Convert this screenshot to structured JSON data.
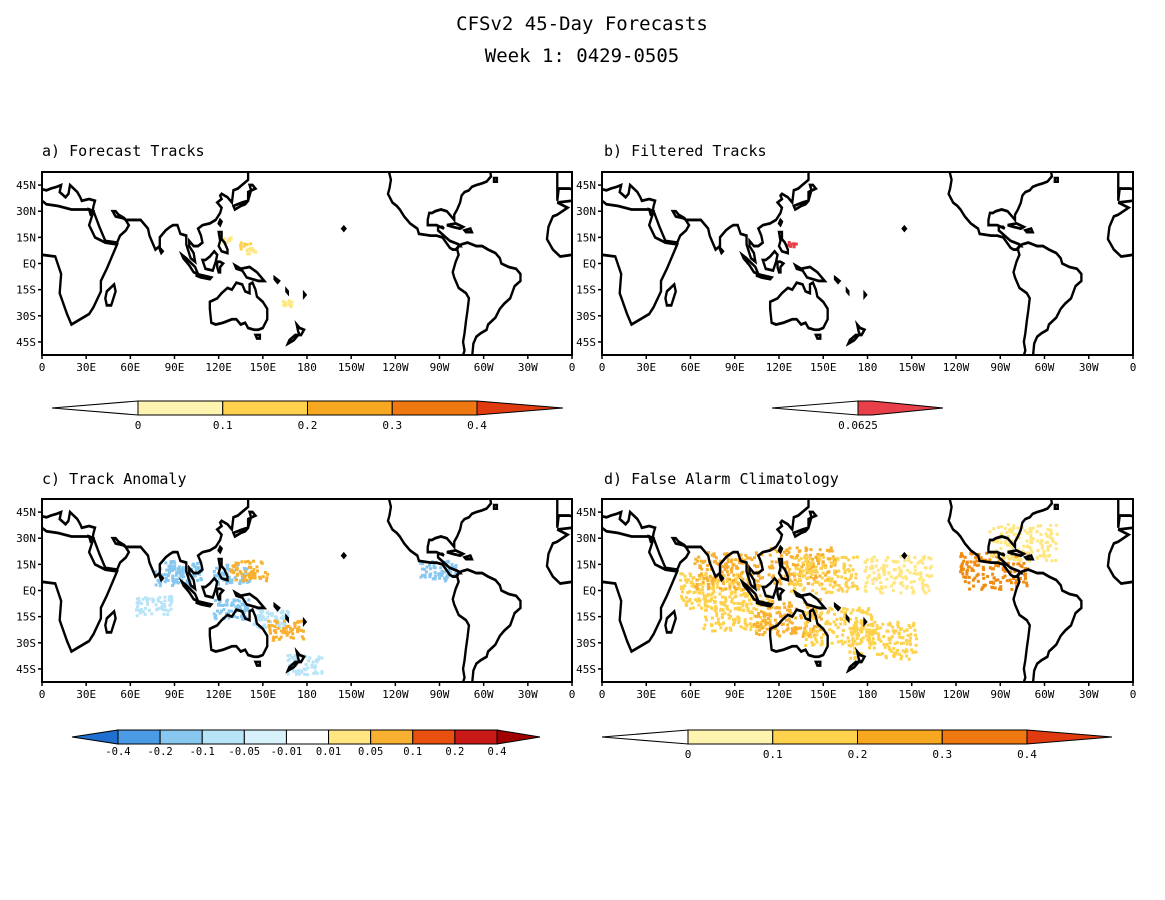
{
  "figure": {
    "title": "CFSv2 45-Day Forecasts",
    "subtitle": "Week 1: 0429-0505"
  },
  "axes": {
    "x_ticks": [
      "0",
      "30E",
      "60E",
      "90E",
      "120E",
      "150E",
      "180",
      "150W",
      "120W",
      "90W",
      "60W",
      "30W",
      "0"
    ],
    "y_ticks": [
      "45N",
      "30N",
      "15N",
      "EQ",
      "15S",
      "30S",
      "45S"
    ]
  },
  "colors": {
    "land_outline": "#000000",
    "yellow_light": "#ffe680",
    "yellow": "#ffd24d",
    "orange_light": "#f7b030",
    "orange": "#f08a10",
    "red_orange": "#e85010",
    "red": "#d01010",
    "dark_red": "#a00000",
    "blue_dark": "#1e6fd0",
    "blue": "#4a9ae6",
    "blue_light": "#88c8f0",
    "blue_pale": "#b8e4f8",
    "pink_red": "#e8404a"
  },
  "panels": [
    {
      "id": "a",
      "label": "a) Forecast Tracks",
      "colorbar": {
        "labels": [
          "0",
          "0.1",
          "0.2",
          "0.3",
          "0.4"
        ],
        "colors": [
          "#fff3b0",
          "#ffd24d",
          "#f7a820",
          "#f07810",
          "#e03a10"
        ]
      },
      "features": [
        {
          "lon": 126,
          "lat": 14,
          "value": 0.05
        },
        {
          "lon": 137,
          "lat": 11,
          "value": 0.1
        },
        {
          "lon": 142,
          "lat": 8,
          "value": 0.05
        },
        {
          "lon": 165,
          "lat": -22,
          "value": 0.05
        }
      ]
    },
    {
      "id": "b",
      "label": "b) Filtered Tracks",
      "colorbar": {
        "labels": [
          "0.0625"
        ],
        "colors": [
          "#e8404a"
        ]
      },
      "features": [
        {
          "lon": 127,
          "lat": 12,
          "value": 0.0625
        }
      ]
    },
    {
      "id": "c",
      "label": "c) Track Anomaly",
      "colorbar": {
        "labels": [
          "-0.4",
          "-0.2",
          "-0.1",
          "-0.05",
          "-0.01",
          "0.01",
          "0.05",
          "0.1",
          "0.2",
          "0.4"
        ],
        "colors": [
          "#1e6fd0",
          "#4a9ae6",
          "#88c8f0",
          "#b8e4f8",
          "#d8f2fc",
          "#ffffff",
          "#ffe680",
          "#f7b030",
          "#e85010",
          "#c81818",
          "#a00000"
        ]
      },
      "features": [
        {
          "lon": 95,
          "lat": 12,
          "value": -0.05
        },
        {
          "lon": 88,
          "lat": 8,
          "value": -0.05
        },
        {
          "lon": 75,
          "lat": -8,
          "value": -0.01
        },
        {
          "lon": 128,
          "lat": 10,
          "value": -0.05
        },
        {
          "lon": 140,
          "lat": 12,
          "value": 0.05
        },
        {
          "lon": 128,
          "lat": -10,
          "value": -0.05
        },
        {
          "lon": 155,
          "lat": -15,
          "value": -0.01
        },
        {
          "lon": 178,
          "lat": -42,
          "value": -0.01
        },
        {
          "lon": 268,
          "lat": 12,
          "value": -0.05
        },
        {
          "lon": 165,
          "lat": -22,
          "value": 0.05
        }
      ]
    },
    {
      "id": "d",
      "label": "d) False Alarm Climatology",
      "colorbar": {
        "labels": [
          "0",
          "0.1",
          "0.2",
          "0.3",
          "0.4"
        ],
        "colors": [
          "#fff3b0",
          "#ffd24d",
          "#f7a820",
          "#f07810",
          "#e03a10"
        ]
      },
      "features": [
        {
          "lon": 75,
          "lat": 0,
          "value": 0.1
        },
        {
          "lon": 85,
          "lat": 12,
          "value": 0.15
        },
        {
          "lon": 90,
          "lat": -12,
          "value": 0.1
        },
        {
          "lon": 135,
          "lat": 15,
          "value": 0.12
        },
        {
          "lon": 150,
          "lat": 10,
          "value": 0.1
        },
        {
          "lon": 125,
          "lat": -15,
          "value": 0.12
        },
        {
          "lon": 160,
          "lat": -20,
          "value": 0.08
        },
        {
          "lon": 190,
          "lat": -28,
          "value": 0.08
        },
        {
          "lon": 265,
          "lat": 12,
          "value": 0.2
        },
        {
          "lon": 285,
          "lat": 28,
          "value": 0.05
        },
        {
          "lon": 200,
          "lat": 10,
          "value": 0.05
        }
      ]
    }
  ]
}
